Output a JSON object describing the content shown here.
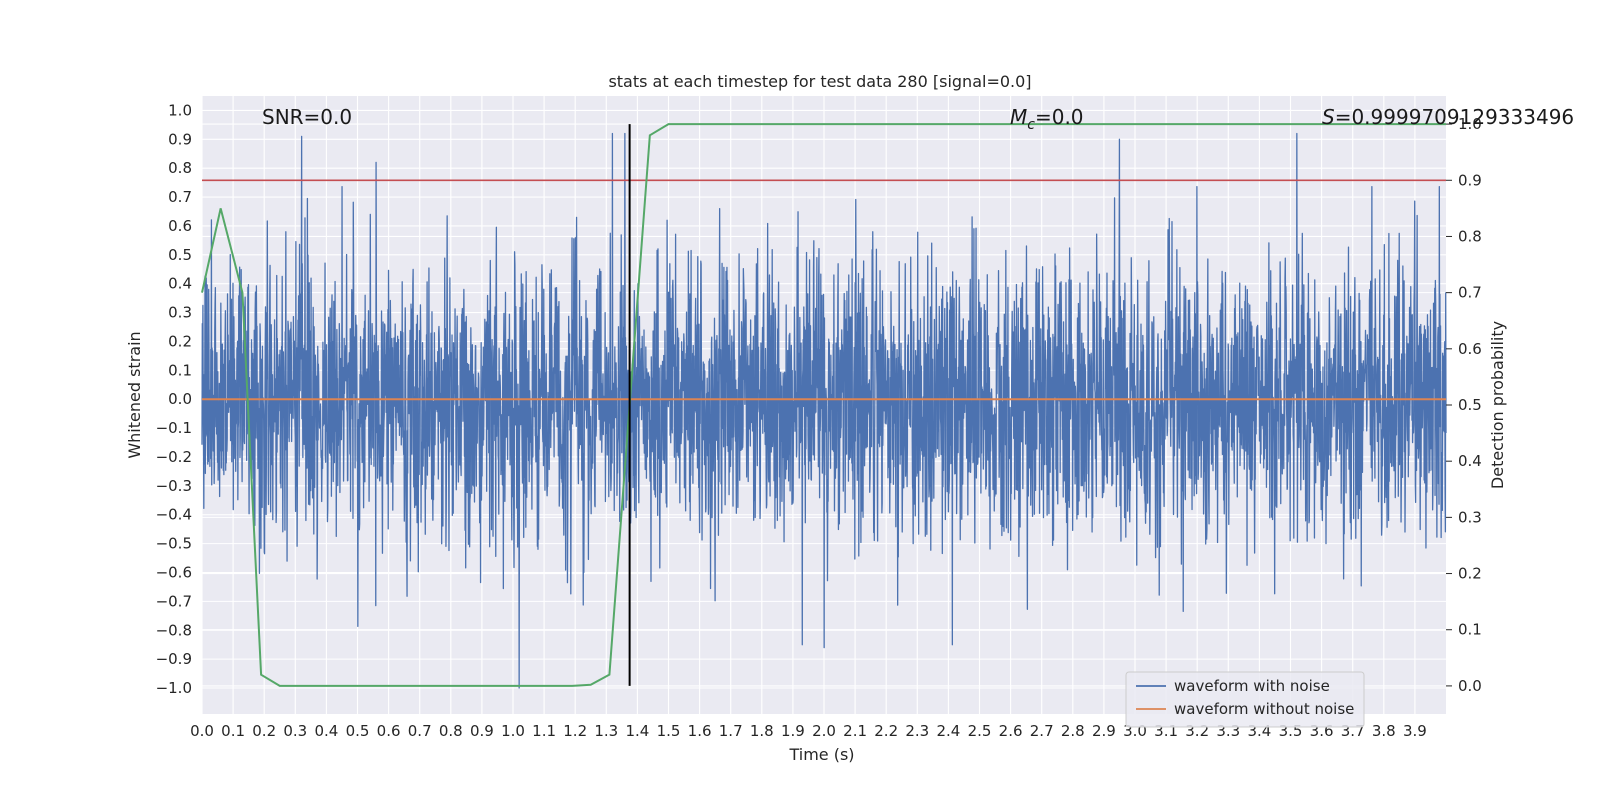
{
  "chart_data": {
    "type": "line",
    "title": "stats at each timestep for test data 280 [signal=0.0]",
    "xlabel": "Time (s)",
    "ylabel": "Whitened strain",
    "y2label": "Detection probability",
    "xlim": [
      0.0,
      4.0
    ],
    "ylim": [
      -1.09,
      1.05
    ],
    "y2lim": [
      -0.05,
      1.05
    ],
    "x_ticks": [
      0.0,
      0.1,
      0.2,
      0.3,
      0.4,
      0.5,
      0.6,
      0.7,
      0.8,
      0.9,
      1.0,
      1.1,
      1.2,
      1.3,
      1.4,
      1.5,
      1.6,
      1.7,
      1.8,
      1.9,
      2.0,
      2.1,
      2.2,
      2.3,
      2.4,
      2.5,
      2.6,
      2.7,
      2.8,
      2.9,
      3.0,
      3.1,
      3.2,
      3.3,
      3.4,
      3.5,
      3.6,
      3.7,
      3.8,
      3.9
    ],
    "x_tick_labels": [
      "0.0",
      "0.1",
      "0.2",
      "0.3",
      "0.4",
      "0.5",
      "0.6",
      "0.7",
      "0.8",
      "0.9",
      "1.0",
      "1.1",
      "1.2",
      "1.3",
      "1.4",
      "1.5",
      "1.6",
      "1.7",
      "1.8",
      "1.9",
      "2.0",
      "2.1",
      "2.2",
      "2.3",
      "2.4",
      "2.5",
      "2.6",
      "2.7",
      "2.8",
      "2.9",
      "3.0",
      "3.1",
      "3.2",
      "3.3",
      "3.4",
      "3.5",
      "3.6",
      "3.7",
      "3.8",
      "3.9"
    ],
    "y_ticks": [
      -1.0,
      -0.9,
      -0.8,
      -0.7,
      -0.6,
      -0.5,
      -0.4,
      -0.3,
      -0.2,
      -0.1,
      0.0,
      0.1,
      0.2,
      0.3,
      0.4,
      0.5,
      0.6,
      0.7,
      0.8,
      0.9,
      1.0
    ],
    "y_tick_labels": [
      "−1.0",
      "−0.9",
      "−0.8",
      "−0.7",
      "−0.6",
      "−0.5",
      "−0.4",
      "−0.3",
      "−0.2",
      "−0.1",
      "0.0",
      "0.1",
      "0.2",
      "0.3",
      "0.4",
      "0.5",
      "0.6",
      "0.7",
      "0.8",
      "0.9",
      "1.0"
    ],
    "y2_ticks": [
      0.0,
      0.1,
      0.2,
      0.3,
      0.4,
      0.5,
      0.6,
      0.7,
      0.8,
      0.9,
      1.0
    ],
    "y2_tick_labels": [
      "0.0",
      "0.1",
      "0.2",
      "0.3",
      "0.4",
      "0.5",
      "0.6",
      "0.7",
      "0.8",
      "0.9",
      "1.0"
    ],
    "grid": true,
    "legend_position": "lower-right",
    "series": [
      {
        "name": "waveform with noise",
        "axis": "left",
        "color": "#4c72b0",
        "kind": "noise",
        "amplitude_envelope": [
          -1.0,
          0.92
        ],
        "peaks": [
          {
            "x": 0.32,
            "y": 0.91
          },
          {
            "x": 0.56,
            "y": 0.82
          },
          {
            "x": 1.02,
            "y": -1.0
          },
          {
            "x": 1.32,
            "y": 0.92
          },
          {
            "x": 1.36,
            "y": 0.92
          },
          {
            "x": 2.0,
            "y": -0.86
          },
          {
            "x": 2.95,
            "y": 0.9
          },
          {
            "x": 3.52,
            "y": 0.92
          }
        ]
      },
      {
        "name": "waveform without noise",
        "axis": "left",
        "color": "#dd8452",
        "x": [
          0.0,
          4.0
        ],
        "y": [
          0.0,
          0.0
        ]
      },
      {
        "name": "",
        "axis": "right",
        "color": "#55a868",
        "x": [
          0.0,
          0.06,
          0.13,
          0.19,
          0.25,
          1.19,
          1.25,
          1.31,
          1.375,
          1.44,
          1.5,
          4.0
        ],
        "y": [
          0.7,
          0.85,
          0.7,
          0.02,
          0.0,
          0.0,
          0.002,
          0.02,
          0.5,
          0.98,
          1.0,
          1.0
        ]
      }
    ],
    "threshold_line": {
      "axis": "right",
      "value": 0.9,
      "color": "#c44e52"
    },
    "vertical_line": {
      "x": 1.375,
      "color": "#000000"
    },
    "annotations": {
      "snr_text": "SNR=0.0",
      "mc_symbol": "M",
      "mc_subscript": "c",
      "mc_value": "=0.0",
      "s_symbol": "S",
      "s_value": "=0.9999709129333496"
    }
  }
}
